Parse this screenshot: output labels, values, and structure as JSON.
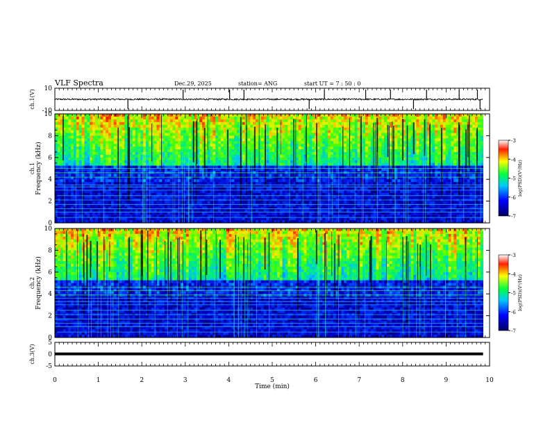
{
  "header": {
    "title": "VLF Spectra",
    "date": "Dec.29, 2025",
    "station": "station= ANG",
    "start": "start  UT =   7 : 50 : 0"
  },
  "chart_data": [
    {
      "type": "line",
      "panel": "ch1-waveform",
      "ylabel": "ch.1(V)",
      "ylim": [
        -10,
        10
      ],
      "yticks": [
        "10",
        "-10"
      ],
      "xlim": [
        0,
        10
      ],
      "baseline": 0,
      "spikes_min": [
        1.68,
        2.95,
        4.02,
        4.35,
        5.85,
        6.2,
        7.15,
        7.72,
        8.25,
        8.55,
        9.3,
        9.72,
        9.78
      ]
    },
    {
      "type": "heatmap",
      "panel": "ch1-spectrogram",
      "ylabel": "Frequency (kHz)",
      "channel_label": "ch.1",
      "ylim": [
        0,
        10
      ],
      "yticks": [
        "0",
        "2",
        "4",
        "6",
        "8",
        "10"
      ],
      "xlim": [
        0,
        9.85
      ],
      "colorbar": {
        "label": "log(PSD)(V²/Hz)",
        "range": [
          -7,
          -3
        ],
        "ticks": [
          "-3",
          "-4",
          "-5",
          "-6",
          "-7"
        ]
      },
      "tonal_lines_khz": [
        0.5,
        1.0,
        1.3,
        1.7,
        2.1,
        2.5,
        3.0,
        3.3,
        3.5,
        4.2,
        4.6,
        5.0
      ]
    },
    {
      "type": "heatmap",
      "panel": "ch2-spectrogram",
      "ylabel": "Frequency (kHz)",
      "channel_label": "ch.2",
      "ylim": [
        0,
        10
      ],
      "yticks": [
        "0",
        "2",
        "4",
        "6",
        "8",
        "10"
      ],
      "xlim": [
        0,
        9.85
      ],
      "colorbar": {
        "label": "log(PSD)(V²/Hz)",
        "range": [
          -7,
          -3
        ],
        "ticks": [
          "-3",
          "-4",
          "-5",
          "-6",
          "-7"
        ]
      },
      "tonal_lines_khz": [
        0.5,
        1.0,
        1.3,
        1.7,
        2.1,
        2.5,
        3.0,
        3.3,
        3.6,
        3.9,
        4.3,
        4.6
      ]
    },
    {
      "type": "line",
      "panel": "ch3-waveform",
      "ylabel": "ch.3(V)",
      "ylim": [
        -5,
        5
      ],
      "yticks": [
        "5",
        "0",
        "-5"
      ],
      "xlim": [
        0,
        10
      ],
      "level": 0.1
    }
  ],
  "xaxis": {
    "label": "Time (min)",
    "ticks": [
      "0",
      "1",
      "2",
      "3",
      "4",
      "5",
      "6",
      "7",
      "8",
      "9",
      "10"
    ]
  }
}
